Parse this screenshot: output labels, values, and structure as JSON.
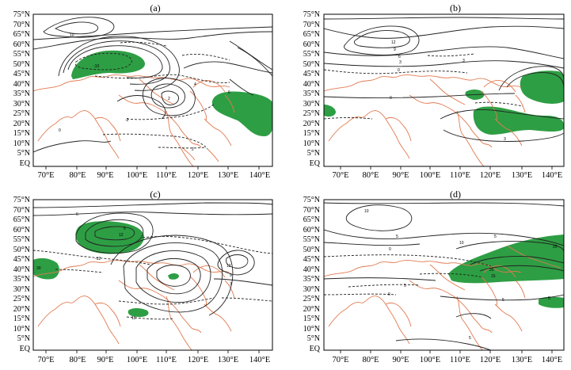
{
  "figure": {
    "panels": [
      {
        "id": "a",
        "title": "(a)"
      },
      {
        "id": "b",
        "title": "(b)"
      },
      {
        "id": "c",
        "title": "(c)"
      },
      {
        "id": "d",
        "title": "(d)"
      }
    ],
    "lat_labels": [
      "75°N",
      "70°N",
      "65°N",
      "60°N",
      "55°N",
      "50°N",
      "45°N",
      "40°N",
      "35°N",
      "30°N",
      "25°N",
      "20°N",
      "15°N",
      "10°N",
      "5°N",
      "EQ"
    ],
    "lon_labels": [
      "70°E",
      "80°E",
      "90°E",
      "100°E",
      "110°E",
      "120°E",
      "130°E",
      "140°E"
    ],
    "colors": {
      "coast": "#e07a50",
      "contour": "#222222",
      "shade": "#2e9e44",
      "frame": "#000000"
    }
  }
}
